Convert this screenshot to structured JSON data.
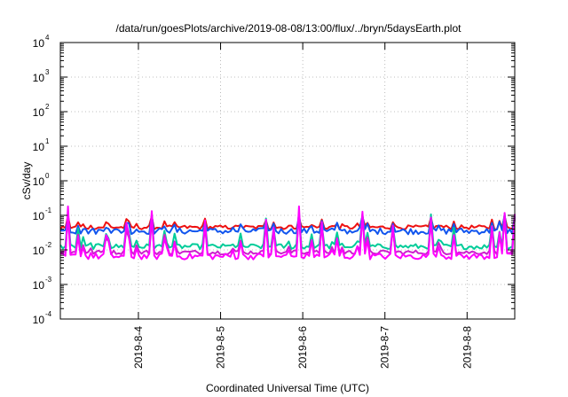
{
  "chart_data": {
    "type": "line",
    "title": "/data/run/goesPlots/archive/2019-08-08/13:00/flux/../bryn/5daysEarth.plot",
    "xlabel": "Coordinated Universal Time (UTC)",
    "ylabel": "cSv/day",
    "yscale": "log",
    "ylim": [
      0.0001,
      10000
    ],
    "xlim": [
      3.05,
      8.58
    ],
    "grid": true,
    "y_ticks": [
      {
        "base": "10",
        "exp": "-4",
        "value": 0.0001
      },
      {
        "base": "10",
        "exp": "-3",
        "value": 0.001
      },
      {
        "base": "10",
        "exp": "-2",
        "value": 0.01
      },
      {
        "base": "10",
        "exp": "-1",
        "value": 0.1
      },
      {
        "base": "10",
        "exp": "0",
        "value": 1
      },
      {
        "base": "10",
        "exp": "1",
        "value": 10
      },
      {
        "base": "10",
        "exp": "2",
        "value": 100
      },
      {
        "base": "10",
        "exp": "3",
        "value": 1000
      },
      {
        "base": "10",
        "exp": "4",
        "value": 10000
      }
    ],
    "x_ticks": [
      {
        "label": "2019-8-4",
        "value": 4
      },
      {
        "label": "2019-8-5",
        "value": 5
      },
      {
        "label": "2019-8-6",
        "value": 6
      },
      {
        "label": "2019-8-7",
        "value": 7
      },
      {
        "label": "2019-8-8",
        "value": 8
      }
    ],
    "series": [
      {
        "color": "#ee1111",
        "base": 0.045,
        "spread": 0.12,
        "spike": 0.3
      },
      {
        "color": "#1155ee",
        "base": 0.035,
        "spread": 0.18,
        "spike": 0.45
      },
      {
        "color": "#00cc99",
        "base": 0.0125,
        "spread": 0.15,
        "spike": 1.0
      },
      {
        "color": "#cc22cc",
        "base": 0.0085,
        "spread": 0.12,
        "spike": 1.1
      },
      {
        "color": "#ff00ff",
        "base": 0.0065,
        "spread": 0.18,
        "spike": 1.4
      }
    ]
  }
}
